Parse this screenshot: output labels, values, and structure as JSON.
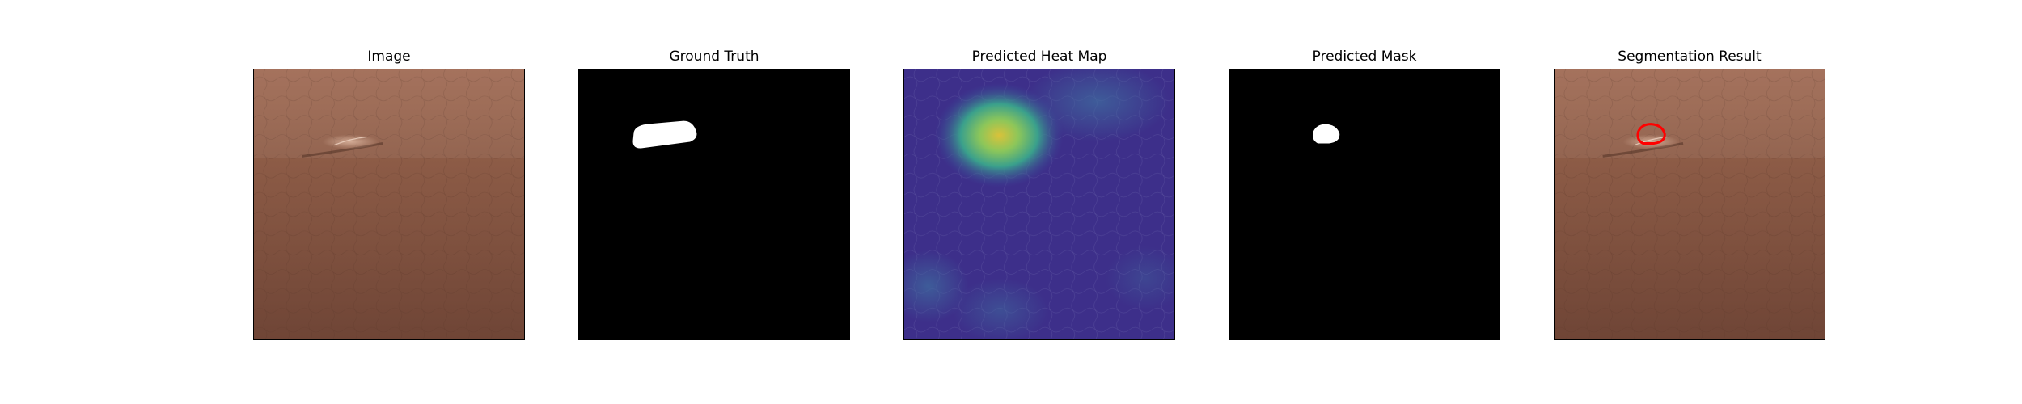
{
  "figure": {
    "panels": [
      {
        "title": "Image",
        "content": "leather-texture-with-defect"
      },
      {
        "title": "Ground Truth",
        "content": "binary-mask"
      },
      {
        "title": "Predicted Heat Map",
        "content": "heatmap-overlay"
      },
      {
        "title": "Predicted Mask",
        "content": "binary-mask"
      },
      {
        "title": "Segmentation Result",
        "content": "contour-overlay"
      }
    ],
    "colors": {
      "leather": "#8a5a45",
      "mask_background": "#000000",
      "mask_foreground": "#ffffff",
      "heatmap_base": "#3b2f86",
      "contour": "#ff0000"
    }
  }
}
